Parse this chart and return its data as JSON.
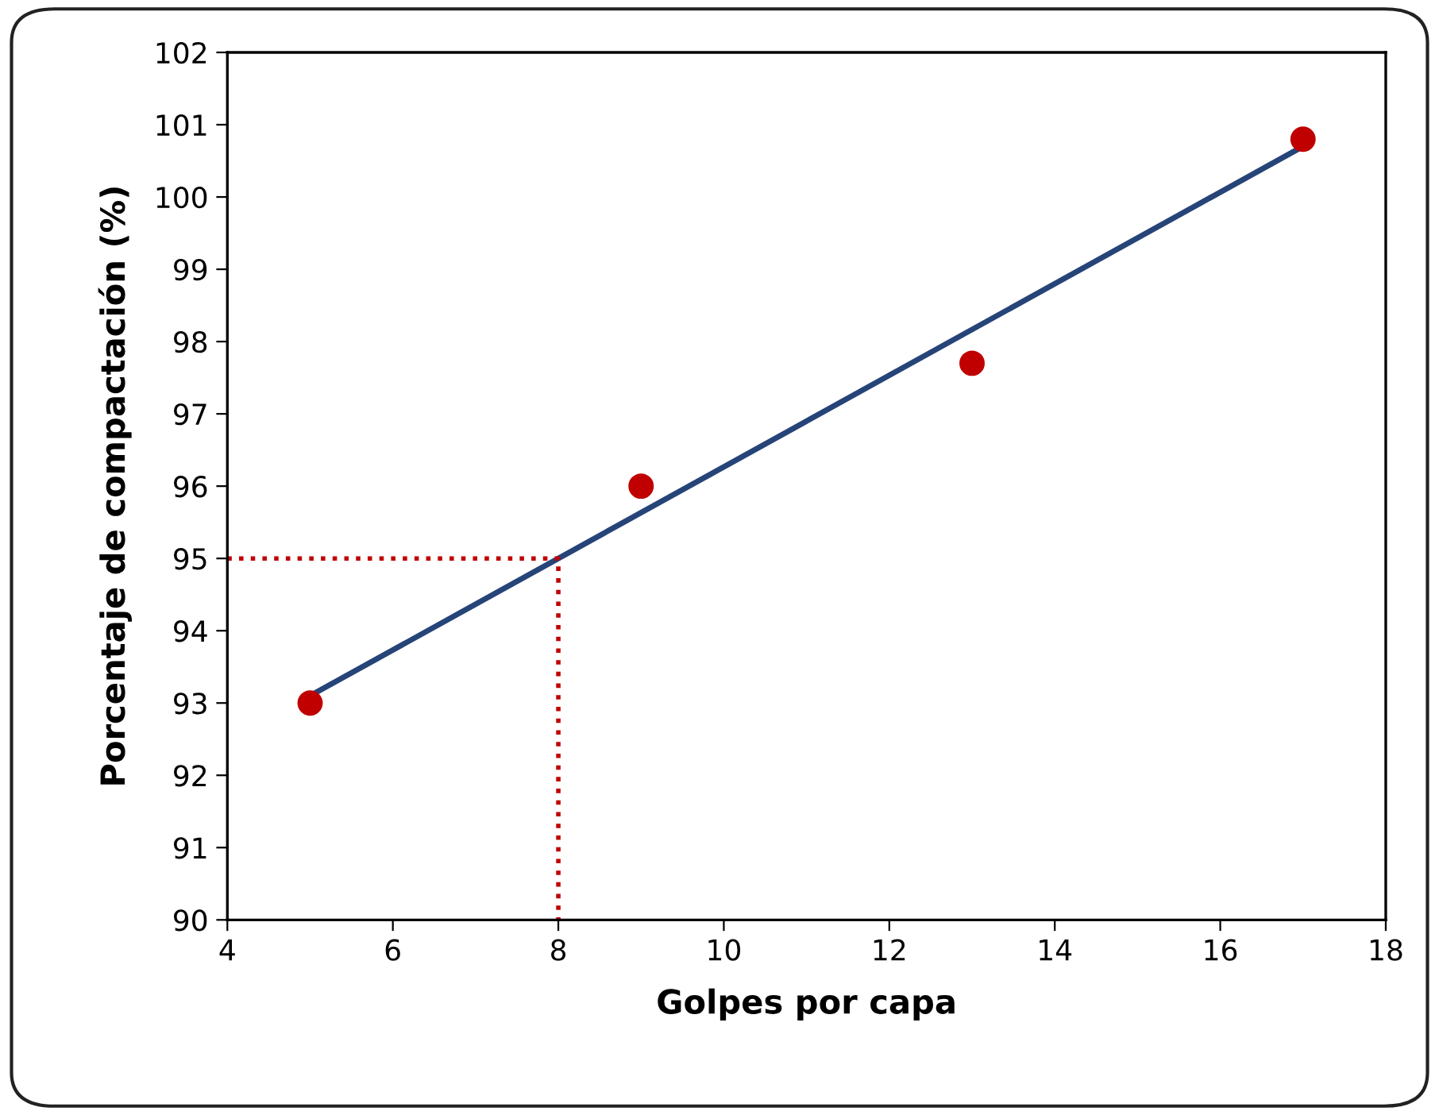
{
  "chart_data": {
    "type": "scatter",
    "xlabel": "Golpes por capa",
    "ylabel": "Porcentaje de compactación (%)",
    "xlim": [
      4,
      18
    ],
    "xticks": [
      4,
      6,
      8,
      10,
      12,
      14,
      16,
      18
    ],
    "ylim": [
      90,
      102
    ],
    "yticks": [
      90,
      91,
      92,
      93,
      94,
      95,
      96,
      97,
      98,
      99,
      100,
      101,
      102
    ],
    "grid": false,
    "series": [
      {
        "type": "line",
        "color": "#264478",
        "x": [
          5,
          17
        ],
        "values": [
          93.1,
          100.7
        ],
        "line_style": "solid",
        "marker": "none"
      },
      {
        "type": "line",
        "color": "#c00000",
        "x": [
          4,
          8,
          8
        ],
        "values": [
          95,
          95,
          90
        ],
        "line_style": "dotted",
        "marker": "none"
      },
      {
        "color": "#c00000",
        "x": [
          5,
          9,
          13,
          17
        ],
        "values": [
          93,
          96,
          97.7,
          100.8
        ],
        "marker": "circle"
      }
    ]
  }
}
